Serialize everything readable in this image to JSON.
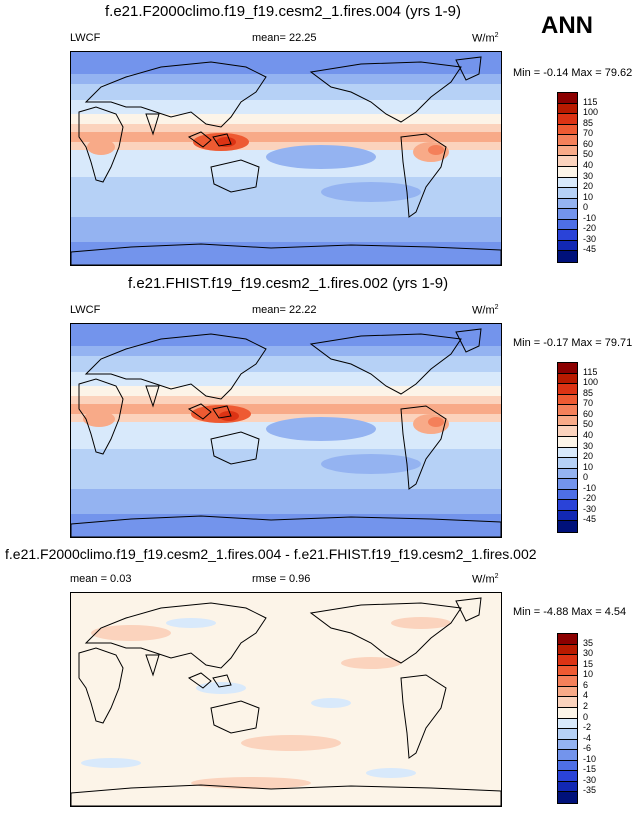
{
  "season": "ANN",
  "panels": [
    {
      "title": "f.e21.F2000climo.f19_f19.cesm2_1.fires.004 (yrs 1-9)",
      "left_label": "LWCF",
      "center_label": "mean=  22.25",
      "units_base": "W/m",
      "units_sup": "2",
      "minmax": "Min =  -0.14 Max =  79.62",
      "colorbar_labels": [
        "115",
        "100",
        "85",
        "70",
        "60",
        "50",
        "40",
        "30",
        "20",
        "10",
        "0",
        "-10",
        "-20",
        "-30",
        "-45"
      ],
      "colorbar_colors": [
        "#8b0000",
        "#b81a00",
        "#dc3314",
        "#ee5a32",
        "#f4805a",
        "#f8aa88",
        "#fbd3bd",
        "#fcf4e8",
        "#d8e9fb",
        "#b6d1f6",
        "#94b3f1",
        "#7394ec",
        "#4e6fe6",
        "#2a43d8",
        "#1228b4",
        "#00117a"
      ]
    },
    {
      "title": "f.e21.FHIST.f19_f19.cesm2_1.fires.002 (yrs 1-9)",
      "left_label": "LWCF",
      "center_label": "mean=  22.22",
      "units_base": "W/m",
      "units_sup": "2",
      "minmax": "Min =  -0.17 Max =  79.71",
      "colorbar_labels": [
        "115",
        "100",
        "85",
        "70",
        "60",
        "50",
        "40",
        "30",
        "20",
        "10",
        "0",
        "-10",
        "-20",
        "-30",
        "-45"
      ],
      "colorbar_colors": [
        "#8b0000",
        "#b81a00",
        "#dc3314",
        "#ee5a32",
        "#f4805a",
        "#f8aa88",
        "#fbd3bd",
        "#fcf4e8",
        "#d8e9fb",
        "#b6d1f6",
        "#94b3f1",
        "#7394ec",
        "#4e6fe6",
        "#2a43d8",
        "#1228b4",
        "#00117a"
      ]
    },
    {
      "title": "f.e21.F2000climo.f19_f19.cesm2_1.fires.004 - f.e21.FHIST.f19_f19.cesm2_1.fires.002",
      "left_label": "mean =   0.03",
      "center_label": "rmse =   0.96",
      "units_base": "W/m",
      "units_sup": "2",
      "minmax": "Min =  -4.88 Max =   4.54",
      "colorbar_labels": [
        "35",
        "30",
        "15",
        "10",
        "6",
        "4",
        "2",
        "0",
        "-2",
        "-4",
        "-6",
        "-10",
        "-15",
        "-30",
        "-35"
      ],
      "colorbar_colors": [
        "#8b0000",
        "#b81a00",
        "#dc3314",
        "#ee5a32",
        "#f4805a",
        "#f8aa88",
        "#fbd3bd",
        "#fcf4e8",
        "#d8e9fb",
        "#b6d1f6",
        "#94b3f1",
        "#7394ec",
        "#4e6fe6",
        "#2a43d8",
        "#1228b4",
        "#00117a"
      ]
    }
  ]
}
